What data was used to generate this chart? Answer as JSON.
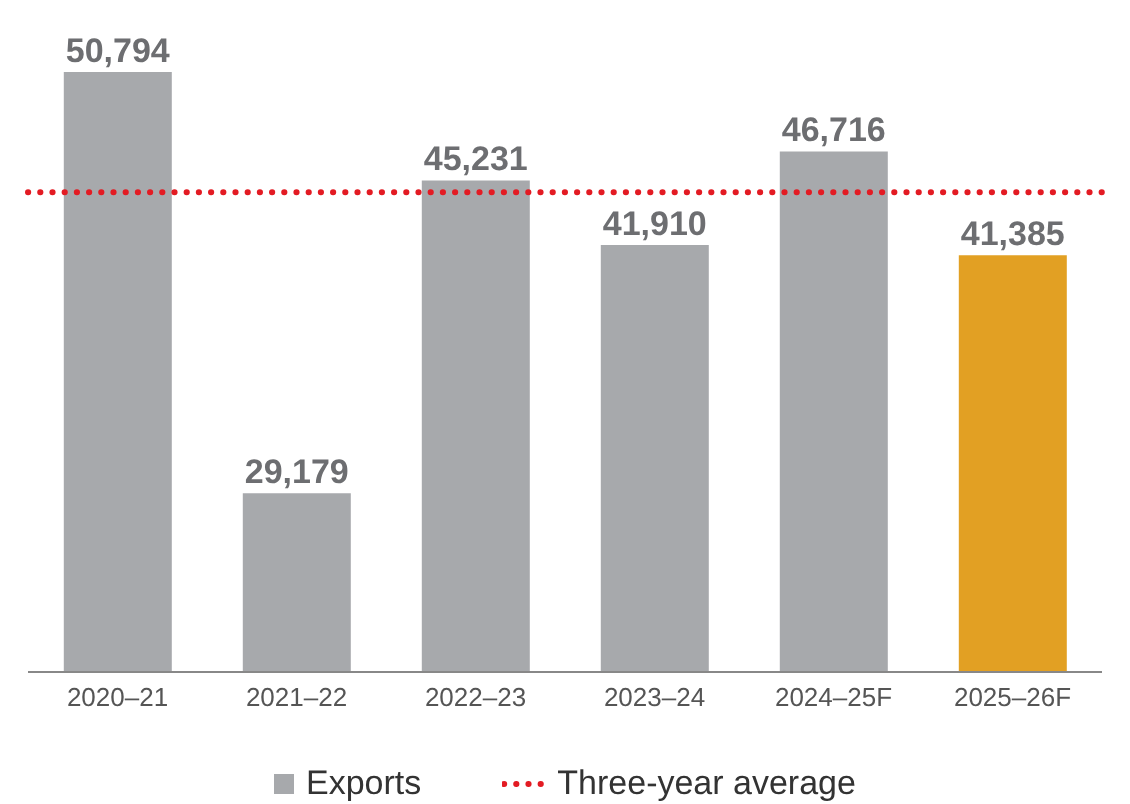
{
  "chart_data": {
    "type": "bar",
    "categories": [
      "2020–21",
      "2021–22",
      "2022–23",
      "2023–24",
      "2024–25F",
      "2025–26F"
    ],
    "series": [
      {
        "name": "Exports",
        "values": [
          50794,
          29179,
          45231,
          41910,
          46716,
          41385
        ],
        "value_labels": [
          "50,794",
          "29,179",
          "45,231",
          "41,910",
          "46,716",
          "41,385"
        ],
        "colors": [
          "#a7a9ac",
          "#a7a9ac",
          "#a7a9ac",
          "#a7a9ac",
          "#a7a9ac",
          "#e2a023"
        ]
      }
    ],
    "ylim": [
      20000,
      50794
    ],
    "tick_labels": "x",
    "ref_lines": [
      {
        "axis": "y",
        "value": 44619,
        "label": "Three-year average",
        "color": "#e31b23",
        "line_style": "dotted"
      }
    ],
    "legend": "bottom",
    "grid": false
  }
}
